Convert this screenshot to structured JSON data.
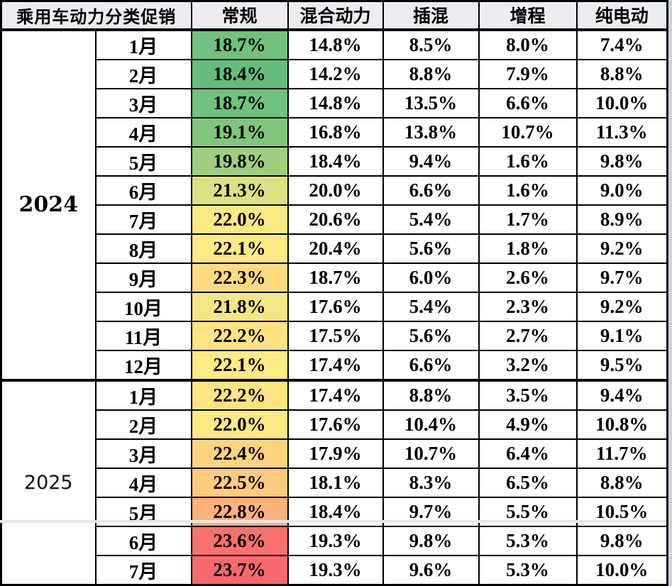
{
  "chart_data": {
    "type": "table",
    "title": "乘用车动力分类促销",
    "columns": [
      "常规",
      "混合动力",
      "插混",
      "增程",
      "纯电动"
    ],
    "value_unit": "%",
    "color_scale": {
      "applies_to_column": "常规",
      "min_color": "#63BE7B",
      "mid_color": "#FFEB84",
      "max_color": "#F8696B"
    },
    "row_groups": [
      {
        "year": "2024",
        "rows": [
          {
            "month": "1月",
            "values": [
              18.7,
              14.8,
              8.5,
              8.0,
              7.4
            ],
            "promo_color": "#70C27C"
          },
          {
            "month": "2月",
            "values": [
              18.4,
              14.2,
              8.8,
              7.9,
              8.8
            ],
            "promo_color": "#63BE7B"
          },
          {
            "month": "3月",
            "values": [
              18.7,
              14.8,
              13.5,
              6.6,
              10.0
            ],
            "promo_color": "#70C27C"
          },
          {
            "month": "4月",
            "values": [
              19.1,
              16.8,
              13.8,
              10.7,
              11.3
            ],
            "promo_color": "#81C67D"
          },
          {
            "month": "5月",
            "values": [
              19.8,
              18.4,
              9.4,
              1.6,
              9.8
            ],
            "promo_color": "#9ECF7E"
          },
          {
            "month": "6月",
            "values": [
              21.3,
              20.0,
              6.6,
              1.6,
              9.0
            ],
            "promo_color": "#DDE182"
          },
          {
            "month": "7月",
            "values": [
              22.0,
              20.6,
              5.4,
              1.7,
              8.9
            ],
            "promo_color": "#FBEA84"
          },
          {
            "month": "8月",
            "values": [
              22.1,
              20.4,
              5.6,
              1.8,
              9.2
            ],
            "promo_color": "#FFEB84"
          },
          {
            "month": "9月",
            "values": [
              22.3,
              18.7,
              6.0,
              2.6,
              9.7
            ],
            "promo_color": "#FEDB81"
          },
          {
            "month": "10月",
            "values": [
              21.8,
              17.6,
              5.4,
              2.3,
              9.2
            ],
            "promo_color": "#F2E783"
          },
          {
            "month": "11月",
            "values": [
              22.2,
              17.5,
              5.6,
              2.7,
              9.1
            ],
            "promo_color": "#FFE382"
          },
          {
            "month": "12月",
            "values": [
              22.1,
              17.4,
              6.6,
              3.2,
              9.5
            ],
            "promo_color": "#FFEB84"
          }
        ]
      },
      {
        "year": "2025",
        "rows": [
          {
            "month": "1月",
            "values": [
              22.2,
              17.4,
              8.8,
              3.5,
              9.4
            ],
            "promo_color": "#FFE382"
          },
          {
            "month": "2月",
            "values": [
              22.0,
              17.6,
              10.4,
              4.9,
              10.8
            ],
            "promo_color": "#FBEA84"
          },
          {
            "month": "3月",
            "values": [
              22.4,
              17.9,
              10.7,
              6.4,
              11.7
            ],
            "promo_color": "#FED380"
          },
          {
            "month": "4月",
            "values": [
              22.5,
              18.1,
              8.3,
              6.5,
              8.8
            ],
            "promo_color": "#FDCB7E"
          },
          {
            "month": "5月",
            "values": [
              22.8,
              18.4,
              9.7,
              5.5,
              10.5
            ],
            "promo_color": "#FCB279"
          },
          {
            "month": "6月",
            "values": [
              23.6,
              19.3,
              9.8,
              5.3,
              9.8
            ],
            "promo_color": "#F8716D"
          },
          {
            "month": "7月",
            "values": [
              23.7,
              19.3,
              9.6,
              5.3,
              10.0
            ],
            "promo_color": "#F8696B"
          }
        ]
      }
    ]
  }
}
